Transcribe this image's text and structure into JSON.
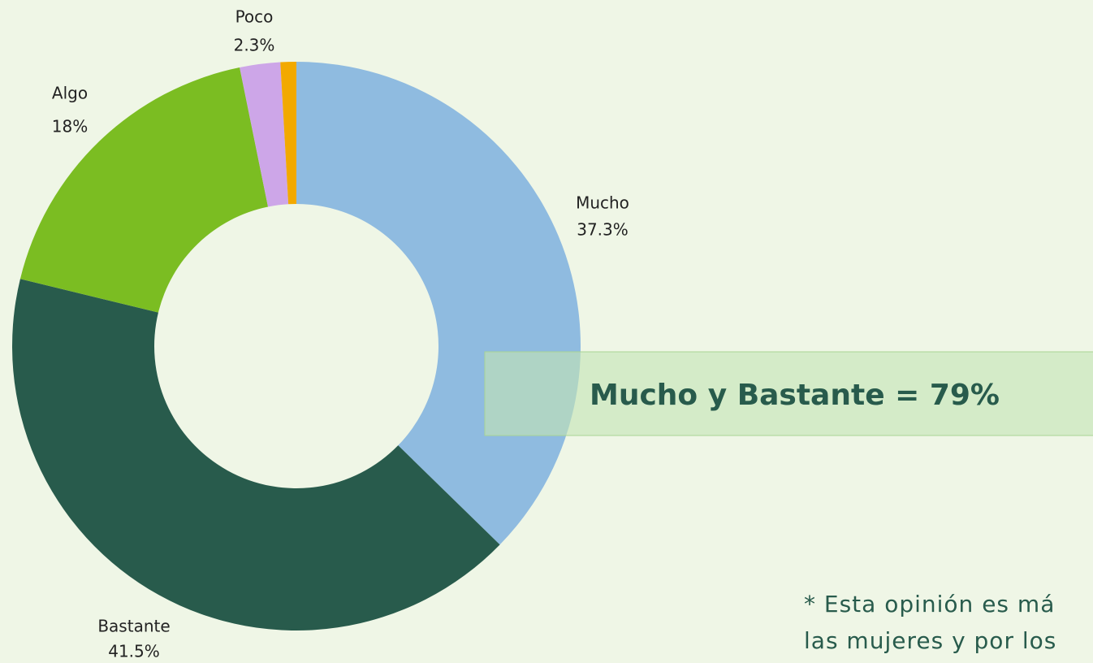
{
  "chart_data": {
    "type": "donut",
    "categories": [
      "Mucho",
      "Bastante",
      "Algo",
      "Poco",
      null
    ],
    "values": [
      37.3,
      41.5,
      18,
      2.3,
      0.9
    ],
    "value_labels": [
      "37.3%",
      "41.5%",
      "18%",
      "2.3%",
      null
    ],
    "colors": [
      "#8fbbe0",
      "#285b4c",
      "#7bbd22",
      "#cda6e8",
      "#f2a900"
    ],
    "annotation": "Mucho y Bastante = 79%",
    "footnote": [
      "* Esta opinión es má",
      "las mujeres y por los"
    ]
  }
}
